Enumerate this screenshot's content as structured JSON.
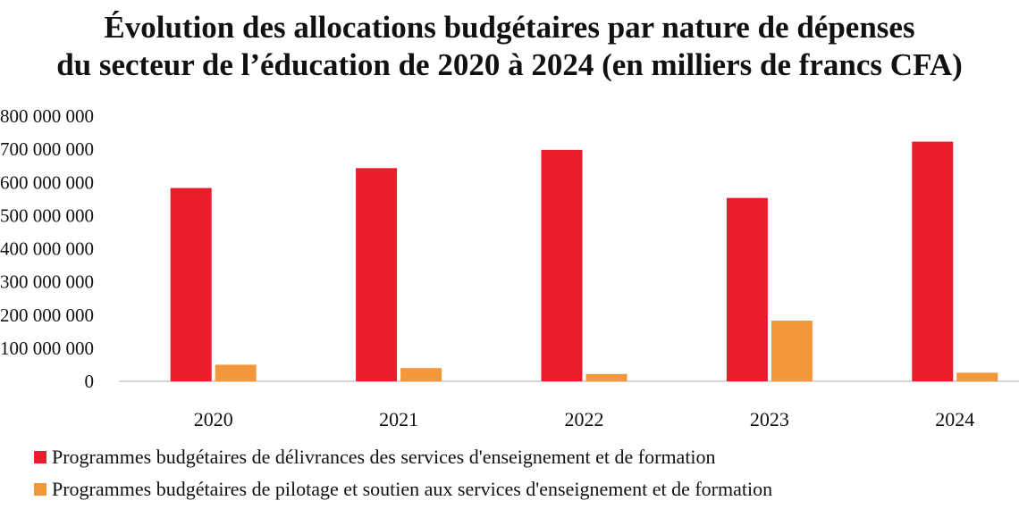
{
  "chart_data": {
    "type": "bar",
    "title_line1": "Évolution des allocations budgétaires par nature de dépenses",
    "title_line2": "du secteur de l’éducation de 2020 à 2024 (en milliers de francs CFA)",
    "categories": [
      "2020",
      "2021",
      "2022",
      "2023",
      "2024"
    ],
    "y_ticks": [
      "0",
      "100 000 000",
      "200 000 000",
      "300 000 000",
      "400 000 000",
      "500 000 000",
      "600 000 000",
      "700 000 000",
      "800 000 000"
    ],
    "ylim": [
      0,
      800000000
    ],
    "grid": false,
    "legend_position": "bottom-left",
    "series": [
      {
        "name": "Programmes budgétaires de délivrances des services d'enseignement et de formation",
        "color": "#ec1c2c",
        "values": [
          583000000,
          643000000,
          698000000,
          553000000,
          723000000
        ]
      },
      {
        "name": "Programmes budgétaires de pilotage et soutien aux services d'enseignement et de formation",
        "color": "#f4963a",
        "values": [
          50000000,
          40000000,
          22000000,
          183000000,
          26000000
        ]
      }
    ]
  }
}
